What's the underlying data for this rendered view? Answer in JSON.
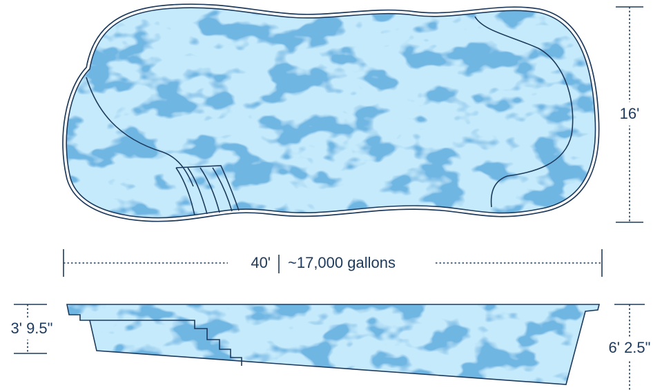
{
  "dimensions": {
    "width": "16'",
    "length": "40'",
    "volume": "~17,000 gallons",
    "shallow_depth": "3' 9.5\"",
    "deep_depth": "6' 2.5\""
  }
}
